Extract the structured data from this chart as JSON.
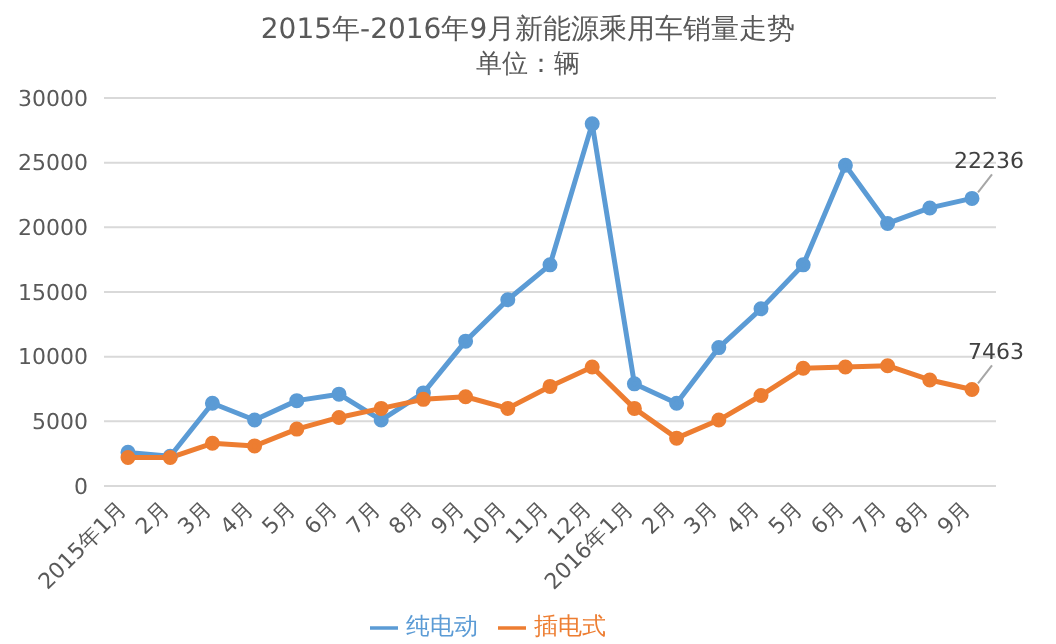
{
  "chart_data": {
    "type": "line",
    "title": "2015年-2016年9月新能源乘用车销量走势",
    "subtitle": "单位：辆",
    "categories": [
      "2015年1月",
      "2月",
      "3月",
      "4月",
      "5月",
      "6月",
      "7月",
      "8月",
      "9月",
      "10月",
      "11月",
      "12月",
      "2016年1月",
      "2月",
      "3月",
      "4月",
      "5月",
      "6月",
      "7月",
      "8月",
      "9月"
    ],
    "series": [
      {
        "name": "纯电动",
        "color": "#5b9bd5",
        "values": [
          2600,
          2300,
          6400,
          5100,
          6600,
          7100,
          5100,
          7200,
          11200,
          14400,
          17100,
          28000,
          7900,
          6400,
          10700,
          13700,
          17100,
          24800,
          20300,
          21500,
          22236
        ],
        "value_labels": [
          null,
          null,
          null,
          null,
          null,
          null,
          null,
          null,
          null,
          null,
          null,
          null,
          null,
          null,
          null,
          null,
          null,
          null,
          null,
          null,
          "22236"
        ]
      },
      {
        "name": "插电式",
        "color": "#ed7d31",
        "values": [
          2200,
          2200,
          3300,
          3100,
          4400,
          5300,
          6000,
          6700,
          6900,
          6000,
          7700,
          9200,
          6000,
          3700,
          5100,
          7000,
          9100,
          9200,
          9300,
          8200,
          7463
        ],
        "value_labels": [
          null,
          null,
          null,
          null,
          null,
          null,
          null,
          null,
          null,
          null,
          null,
          null,
          null,
          null,
          null,
          null,
          null,
          null,
          null,
          null,
          "7463"
        ]
      }
    ],
    "ylim": [
      0,
      30000
    ],
    "yticks": [
      0,
      5000,
      10000,
      15000,
      20000,
      25000,
      30000
    ],
    "grid": "y",
    "legend": "bottom",
    "marker": "circle",
    "line_style": "solid"
  }
}
